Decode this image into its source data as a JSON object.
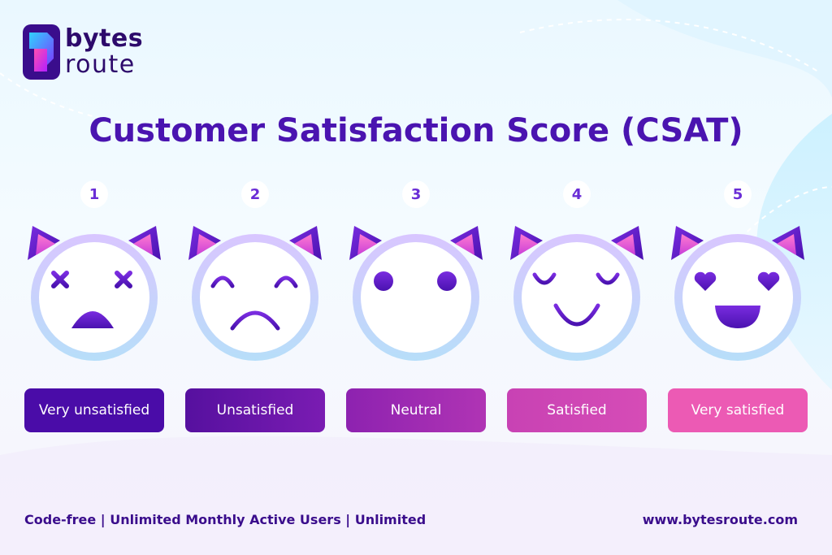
{
  "brand": {
    "line1": "bytes",
    "line2": "route"
  },
  "title": "Customer Satisfaction Score (CSAT)",
  "scale": [
    {
      "number": "1",
      "label": "Very unsatisfied",
      "face": "dizzy-face-icon",
      "color": "#4a0ca8"
    },
    {
      "number": "2",
      "label": "Unsatisfied",
      "face": "sad-face-icon",
      "color": "#6a16b0"
    },
    {
      "number": "3",
      "label": "Neutral",
      "face": "neutral-face-icon",
      "color": "#9c2ab4"
    },
    {
      "number": "4",
      "label": "Satisfied",
      "face": "content-face-icon",
      "color": "#d04ab4"
    },
    {
      "number": "5",
      "label": "Very satisfied",
      "face": "heart-eyes-face-icon",
      "color": "#ec5ab4"
    }
  ],
  "footer": {
    "tagline": "Code-free | Unlimited Monthly Active Users | Unlimited",
    "website": "www.bytesroute.com"
  }
}
